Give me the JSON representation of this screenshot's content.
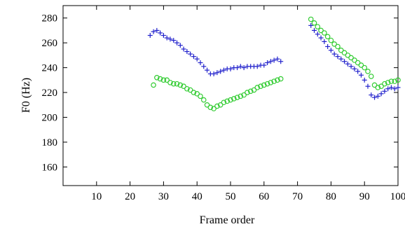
{
  "chart_data": {
    "type": "scatter",
    "title": "",
    "xlabel": "Frame order",
    "ylabel": "F0 (Hz)",
    "xlim": [
      0,
      100
    ],
    "ylim": [
      145,
      290
    ],
    "xticks": [
      10,
      20,
      30,
      40,
      50,
      60,
      70,
      80,
      90,
      100
    ],
    "yticks": [
      160,
      180,
      200,
      220,
      240,
      260,
      280
    ],
    "grid": false,
    "legend": "none",
    "series": [
      {
        "marker": "plus",
        "color": "#2222cc",
        "points": [
          [
            26,
            266
          ],
          [
            27,
            269
          ],
          [
            28,
            270
          ],
          [
            29,
            268
          ],
          [
            30,
            266
          ],
          [
            31,
            264
          ],
          [
            32,
            263
          ],
          [
            33,
            262
          ],
          [
            34,
            260
          ],
          [
            35,
            258
          ],
          [
            36,
            255
          ],
          [
            37,
            253
          ],
          [
            38,
            251
          ],
          [
            39,
            249
          ],
          [
            40,
            247
          ],
          [
            41,
            244
          ],
          [
            42,
            241
          ],
          [
            43,
            238
          ],
          [
            44,
            235
          ],
          [
            45,
            235
          ],
          [
            46,
            236
          ],
          [
            47,
            237
          ],
          [
            48,
            238
          ],
          [
            49,
            239
          ],
          [
            50,
            239
          ],
          [
            51,
            240
          ],
          [
            52,
            240
          ],
          [
            53,
            241
          ],
          [
            54,
            240
          ],
          [
            55,
            241
          ],
          [
            56,
            241
          ],
          [
            57,
            241
          ],
          [
            58,
            241
          ],
          [
            59,
            242
          ],
          [
            60,
            242
          ],
          [
            61,
            244
          ],
          [
            62,
            245
          ],
          [
            63,
            246
          ],
          [
            64,
            247
          ],
          [
            65,
            245
          ],
          [
            74,
            274
          ],
          [
            75,
            270
          ],
          [
            76,
            267
          ],
          [
            77,
            264
          ],
          [
            78,
            261
          ],
          [
            79,
            257
          ],
          [
            80,
            254
          ],
          [
            81,
            251
          ],
          [
            82,
            249
          ],
          [
            83,
            247
          ],
          [
            84,
            245
          ],
          [
            85,
            243
          ],
          [
            86,
            241
          ],
          [
            87,
            239
          ],
          [
            88,
            237
          ],
          [
            89,
            234
          ],
          [
            90,
            230
          ],
          [
            91,
            225
          ],
          [
            92,
            218
          ],
          [
            93,
            216
          ],
          [
            94,
            217
          ],
          [
            95,
            219
          ],
          [
            96,
            221
          ],
          [
            97,
            223
          ],
          [
            98,
            224
          ],
          [
            99,
            223
          ],
          [
            100,
            224
          ]
        ]
      },
      {
        "marker": "circle",
        "color": "#33cc33",
        "points": [
          [
            27,
            226
          ],
          [
            28,
            232
          ],
          [
            29,
            231
          ],
          [
            30,
            230
          ],
          [
            31,
            230
          ],
          [
            32,
            228
          ],
          [
            33,
            227
          ],
          [
            34,
            227
          ],
          [
            35,
            226
          ],
          [
            36,
            225
          ],
          [
            37,
            223
          ],
          [
            38,
            222
          ],
          [
            39,
            220
          ],
          [
            40,
            219
          ],
          [
            41,
            217
          ],
          [
            42,
            214
          ],
          [
            43,
            210
          ],
          [
            44,
            208
          ],
          [
            45,
            207
          ],
          [
            46,
            209
          ],
          [
            47,
            210
          ],
          [
            48,
            212
          ],
          [
            49,
            213
          ],
          [
            50,
            214
          ],
          [
            51,
            215
          ],
          [
            52,
            216
          ],
          [
            53,
            217
          ],
          [
            54,
            218
          ],
          [
            55,
            220
          ],
          [
            56,
            221
          ],
          [
            57,
            222
          ],
          [
            58,
            224
          ],
          [
            59,
            225
          ],
          [
            60,
            226
          ],
          [
            61,
            227
          ],
          [
            62,
            228
          ],
          [
            63,
            229
          ],
          [
            64,
            230
          ],
          [
            65,
            231
          ],
          [
            74,
            279
          ],
          [
            75,
            276
          ],
          [
            76,
            273
          ],
          [
            77,
            270
          ],
          [
            78,
            268
          ],
          [
            79,
            265
          ],
          [
            80,
            262
          ],
          [
            81,
            259
          ],
          [
            82,
            257
          ],
          [
            83,
            254
          ],
          [
            84,
            252
          ],
          [
            85,
            250
          ],
          [
            86,
            248
          ],
          [
            87,
            246
          ],
          [
            88,
            244
          ],
          [
            89,
            242
          ],
          [
            90,
            240
          ],
          [
            91,
            237
          ],
          [
            92,
            233
          ],
          [
            93,
            226
          ],
          [
            94,
            224
          ],
          [
            95,
            225
          ],
          [
            96,
            227
          ],
          [
            97,
            228
          ],
          [
            98,
            229
          ],
          [
            99,
            229
          ],
          [
            100,
            230
          ]
        ]
      }
    ]
  }
}
